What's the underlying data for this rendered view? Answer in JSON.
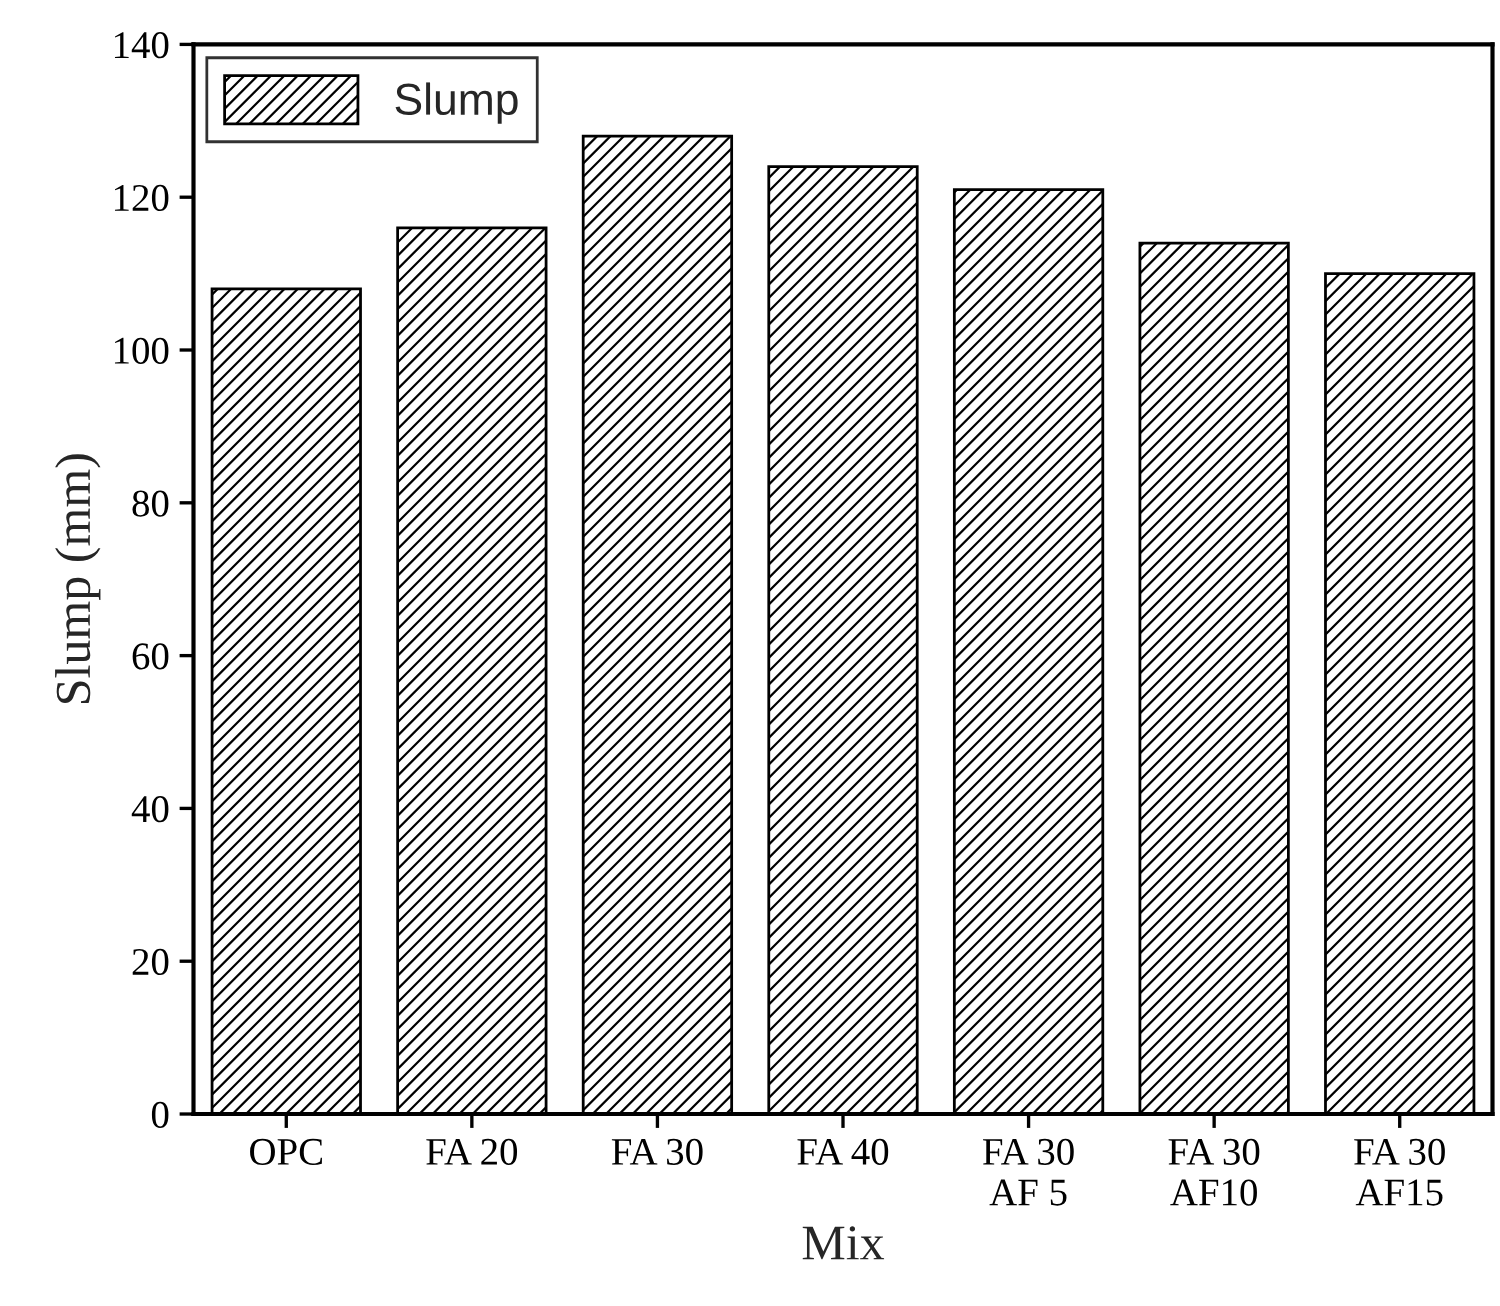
{
  "chart_data": {
    "type": "bar",
    "xlabel": "Mix",
    "ylabel": "Slump (mm)",
    "categories": [
      "OPC",
      "FA 20",
      "FA 30",
      "FA 40",
      "FA 30\nAF 5",
      "FA 30\nAF10",
      "FA 30\nAF15"
    ],
    "series": [
      {
        "name": "Slump",
        "color": "#000000",
        "values": [
          108,
          116,
          128,
          124,
          121,
          114,
          110
        ]
      }
    ],
    "ylim": [
      0,
      140
    ],
    "yticks": [
      0,
      20,
      40,
      60,
      80,
      100,
      120,
      140
    ],
    "grid": false,
    "legend": "top left"
  }
}
